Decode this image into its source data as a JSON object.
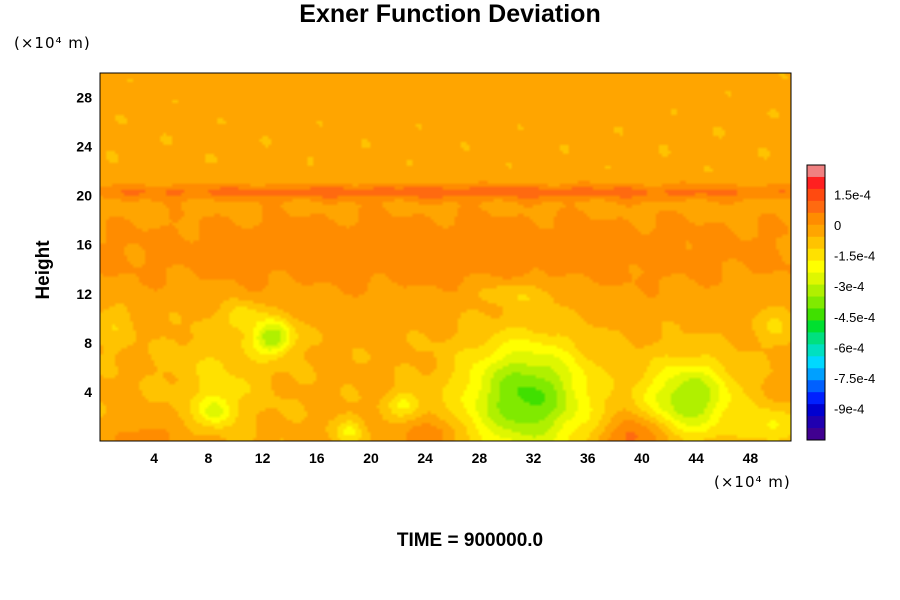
{
  "chart_data": {
    "type": "heatmap",
    "title": "Exner Function Deviation",
    "ylabel": "Height",
    "y_unit": "(×10⁴ m)",
    "x_unit": "(×10⁴ m)",
    "xlim": [
      0,
      51
    ],
    "ylim": [
      0,
      30
    ],
    "x_ticks": [
      "4",
      "8",
      "12",
      "16",
      "20",
      "24",
      "28",
      "32",
      "36",
      "40",
      "44",
      "48"
    ],
    "x_tick_values": [
      4,
      8,
      12,
      16,
      20,
      24,
      28,
      32,
      36,
      40,
      44,
      48
    ],
    "y_ticks": [
      "4",
      "8",
      "12",
      "16",
      "20",
      "24",
      "28"
    ],
    "y_tick_values": [
      4,
      8,
      12,
      16,
      20,
      24,
      28
    ],
    "colorbar": {
      "min": -0.00105,
      "max": 0.0003,
      "tick_labels": [
        "1.5e-4",
        "0",
        "-1.5e-4",
        "-3e-4",
        "-4.5e-4",
        "-6e-4",
        "-7.5e-4",
        "-9e-4"
      ],
      "tick_values": [
        0.00015,
        0,
        -0.00015,
        -0.0003,
        -0.00045,
        -0.0006,
        -0.00075,
        -0.0009
      ],
      "palette": [
        "#f08080",
        "#ff2020",
        "#ff4a10",
        "#ff6a10",
        "#ff8c00",
        "#ffa500",
        "#ffc300",
        "#ffe100",
        "#ffff00",
        "#dff700",
        "#b0f000",
        "#80ea00",
        "#40e000",
        "#00e030",
        "#00e080",
        "#00e0c0",
        "#00d8ff",
        "#00a0ff",
        "#0060ff",
        "#0020ff",
        "#0000d0",
        "#2000b0",
        "#400090"
      ]
    },
    "background_value": -4e-05,
    "features": [
      {
        "x": 25.5,
        "y": 30,
        "value": -3e-05,
        "sx": 40,
        "sy": 7,
        "note": "upper orange layer"
      },
      {
        "x": 25.5,
        "y": 15.5,
        "value": 4e-05,
        "sx": 40,
        "sy": 4,
        "note": "red band below 20"
      },
      {
        "x": 25.5,
        "y": 20.3,
        "value": 8e-05,
        "sx": 40,
        "sy": 0.6,
        "note": "sharp band at 20"
      },
      {
        "x": 31.5,
        "y": 3.5,
        "value": -0.00042,
        "sx": 4.5,
        "sy": 4.5
      },
      {
        "x": 43.5,
        "y": 3.5,
        "value": -0.00035,
        "sx": 3.2,
        "sy": 3.0
      },
      {
        "x": 12.8,
        "y": 8.5,
        "value": -0.00033,
        "sx": 1.5,
        "sy": 1.4
      },
      {
        "x": 10.5,
        "y": 10.2,
        "value": -0.00016,
        "sx": 1.3,
        "sy": 1.1
      },
      {
        "x": 8.5,
        "y": 2.5,
        "value": -0.00022,
        "sx": 1.3,
        "sy": 1.3
      },
      {
        "x": 9.0,
        "y": 5.5,
        "value": -0.00012,
        "sx": 3.5,
        "sy": 4.0
      },
      {
        "x": 18.5,
        "y": 0.8,
        "value": -0.00018,
        "sx": 1.0,
        "sy": 1.0
      },
      {
        "x": 22.5,
        "y": 3.0,
        "value": -0.00018,
        "sx": 1.2,
        "sy": 1.0
      },
      {
        "x": 31.0,
        "y": 12.0,
        "value": -0.00012,
        "sx": 3.5,
        "sy": 1.2
      },
      {
        "x": 49.5,
        "y": 1.2,
        "value": -0.00018,
        "sx": 2.0,
        "sy": 1.5
      },
      {
        "x": 50.0,
        "y": 9.5,
        "value": -0.00012,
        "sx": 1.5,
        "sy": 1.5
      },
      {
        "x": 1.0,
        "y": 9.5,
        "value": -0.0001,
        "sx": 1.5,
        "sy": 2.0
      },
      {
        "x": 39.5,
        "y": 0.5,
        "value": 0.00012,
        "sx": 2.2,
        "sy": 1.6
      },
      {
        "x": 24.5,
        "y": 0.5,
        "value": 9e-05,
        "sx": 1.8,
        "sy": 1.2
      },
      {
        "x": 3.5,
        "y": 0.2,
        "value": 7e-05,
        "sx": 2.0,
        "sy": 1.0
      },
      {
        "x": 30.0,
        "y": 26.5,
        "value": -4e-05,
        "sx": 10,
        "sy": 1.3
      },
      {
        "x": 37.0,
        "y": 23.0,
        "value": -4e-05,
        "sx": 10,
        "sy": 1.2
      }
    ]
  },
  "footer": {
    "time_label": "TIME = 900000.0"
  }
}
